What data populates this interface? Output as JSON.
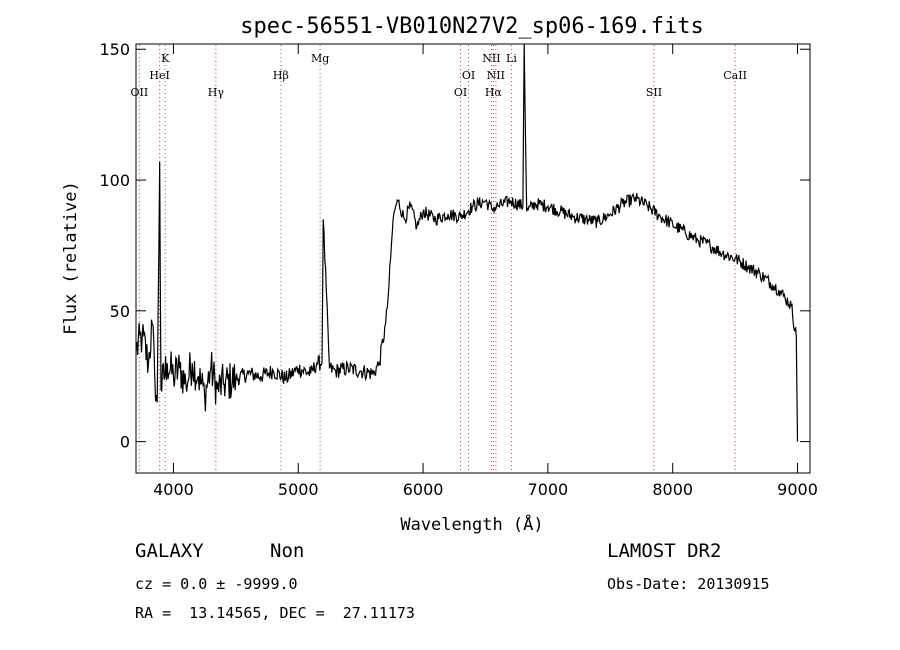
{
  "chart_data": {
    "type": "line",
    "title": "spec-56551-VB010N27V2_sp06-169.fits",
    "xlabel": "Wavelength (Å)",
    "ylabel": "Flux (relative)",
    "xlim": [
      3700,
      9100
    ],
    "ylim": [
      -12,
      152
    ],
    "xticks": [
      4000,
      5000,
      6000,
      7000,
      8000,
      9000
    ],
    "yticks": [
      0,
      50,
      100,
      150
    ],
    "grid": false,
    "series": [
      {
        "color": "#000000",
        "x": [
          3700,
          3750,
          3800,
          3830,
          3850,
          3870,
          3890,
          3900,
          3950,
          4000,
          4050,
          4100,
          4150,
          4200,
          4250,
          4300,
          4350,
          4400,
          4500,
          4600,
          4700,
          4800,
          4900,
          5000,
          5100,
          5150,
          5190,
          5200,
          5250,
          5300,
          5400,
          5500,
          5600,
          5650,
          5700,
          5720,
          5740,
          5760,
          5780,
          5800,
          5850,
          5900,
          5950,
          6000,
          6100,
          6200,
          6300,
          6400,
          6500,
          6550,
          6600,
          6700,
          6800,
          6810,
          6830,
          6900,
          7000,
          7100,
          7200,
          7300,
          7400,
          7500,
          7600,
          7700,
          7800,
          7900,
          8000,
          8100,
          8200,
          8300,
          8400,
          8500,
          8600,
          8700,
          8800,
          8850,
          8900,
          8950,
          8990,
          9000
        ],
        "y": [
          35,
          40,
          30,
          45,
          25,
          15,
          107,
          20,
          30,
          25,
          28,
          22,
          30,
          25,
          18,
          28,
          20,
          22,
          24,
          26,
          25,
          27,
          24,
          28,
          26,
          30,
          30,
          85,
          28,
          27,
          28,
          27,
          26,
          30,
          45,
          55,
          70,
          85,
          90,
          92,
          85,
          90,
          82,
          88,
          85,
          87,
          86,
          90,
          92,
          89,
          90,
          92,
          90,
          152,
          88,
          91,
          90,
          88,
          86,
          85,
          84,
          87,
          91,
          93,
          90,
          86,
          83,
          80,
          77,
          75,
          72,
          70,
          67,
          64,
          60,
          58,
          55,
          52,
          40,
          0
        ]
      }
    ],
    "spectral_lines": [
      {
        "label": "OII",
        "x": 3727,
        "row": 3
      },
      {
        "label": "K",
        "x": 3934,
        "row": 1
      },
      {
        "label": "HeI",
        "x": 3889,
        "row": 2
      },
      {
        "label": "Hγ",
        "x": 4340,
        "row": 3
      },
      {
        "label": "Hβ",
        "x": 4861,
        "row": 2
      },
      {
        "label": "Mg",
        "x": 5175,
        "row": 1
      },
      {
        "label": "OI",
        "x": 6300,
        "row": 3
      },
      {
        "label": "OI",
        "x": 6364,
        "row": 2
      },
      {
        "label": "NII",
        "x": 6548,
        "row": 1
      },
      {
        "label": "NII",
        "x": 6583,
        "row": 2
      },
      {
        "label": "Hα",
        "x": 6563,
        "row": 3
      },
      {
        "label": "Li",
        "x": 6708,
        "row": 1
      },
      {
        "label": "SII",
        "x": 7850,
        "row": 3
      },
      {
        "label": "CaII",
        "x": 8500,
        "row": 2
      }
    ]
  },
  "info": {
    "class_label": "GALAXY",
    "subclass": "Non",
    "survey": "LAMOST DR2",
    "cz": "cz = 0.0 ± -9999.0",
    "obs_date": "Obs-Date: 20130915",
    "coords": "RA =  13.14565, DEC =  27.11173"
  },
  "colors": {
    "spectrum": "#000000",
    "line_markers": "#c83c3c"
  }
}
